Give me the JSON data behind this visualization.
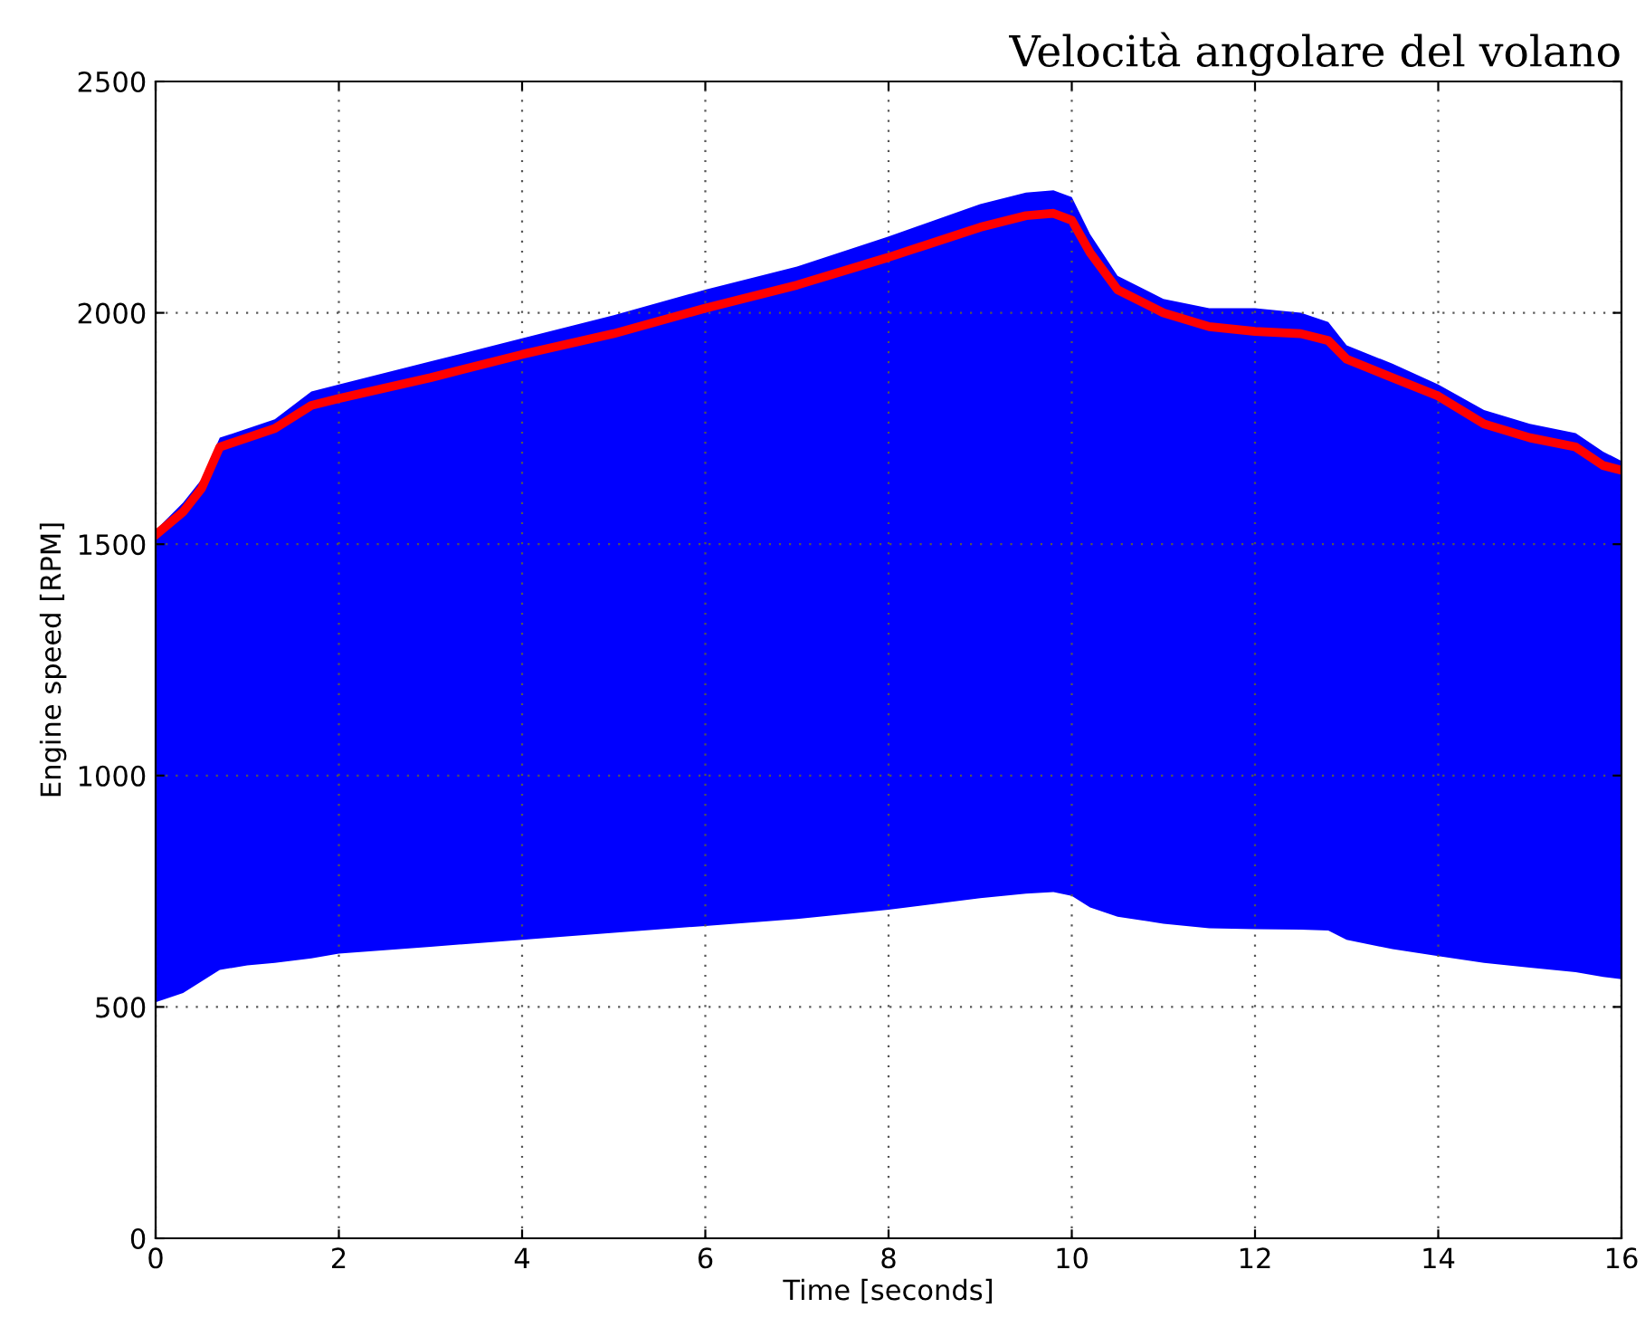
{
  "chart_data": {
    "type": "line",
    "title": "Velocità angolare del volano",
    "xlabel": "Time [seconds]",
    "ylabel": "Engine speed [RPM]",
    "x": [
      0,
      0.3,
      0.5,
      0.7,
      1.0,
      1.3,
      1.7,
      2,
      3,
      4,
      5,
      6,
      7,
      8,
      9,
      9.5,
      9.8,
      10,
      10.2,
      10.5,
      11,
      11.5,
      12,
      12.5,
      12.8,
      13,
      13.5,
      14,
      14.5,
      15,
      15.5,
      15.8,
      16
    ],
    "series": [
      {
        "color": "#ff0000",
        "values": [
          1520,
          1570,
          1620,
          1710,
          1730,
          1750,
          1800,
          1815,
          1860,
          1910,
          1955,
          2010,
          2060,
          2120,
          2185,
          2210,
          2215,
          2200,
          2130,
          2050,
          2000,
          1970,
          1960,
          1955,
          1940,
          1900,
          1860,
          1820,
          1760,
          1730,
          1710,
          1670,
          1660
        ],
        "upper": [
          1530,
          1590,
          1640,
          1730,
          1750,
          1770,
          1830,
          1845,
          1895,
          1945,
          1995,
          2050,
          2100,
          2165,
          2235,
          2260,
          2265,
          2250,
          2170,
          2080,
          2030,
          2010,
          2010,
          2000,
          1980,
          1930,
          1890,
          1845,
          1790,
          1760,
          1740,
          1700,
          1680
        ],
        "lower": [
          510,
          530,
          555,
          580,
          590,
          595,
          605,
          615,
          630,
          645,
          660,
          675,
          690,
          710,
          735,
          745,
          748,
          740,
          715,
          695,
          680,
          670,
          668,
          667,
          665,
          645,
          625,
          610,
          595,
          585,
          575,
          565,
          560
        ]
      }
    ],
    "xlim": [
      0,
      16
    ],
    "xticks": [
      0,
      2,
      4,
      6,
      8,
      10,
      12,
      14,
      16
    ],
    "ylim": [
      0,
      2500
    ],
    "yticks": [
      0,
      500,
      1000,
      1500,
      2000,
      2500
    ],
    "grid": true,
    "line_style": "solid",
    "legend": false
  }
}
